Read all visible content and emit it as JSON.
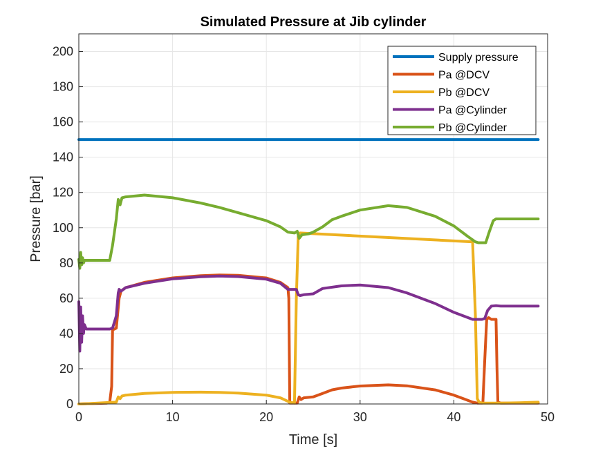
{
  "chart_data": {
    "type": "line",
    "title": "Simulated Pressure at Jib cylinder",
    "xlabel": "Time [s]",
    "ylabel": "Pressure [bar]",
    "xlim": [
      0,
      50
    ],
    "ylim": [
      0,
      210
    ],
    "xticks": [
      0,
      10,
      20,
      30,
      40,
      50
    ],
    "yticks": [
      0,
      20,
      40,
      60,
      80,
      100,
      120,
      140,
      160,
      180,
      200
    ],
    "grid": true,
    "legend_position": "top-right",
    "series": [
      {
        "name": "Supply pressure",
        "color": "#0072BD",
        "x": [
          0,
          49
        ],
        "y": [
          150,
          150
        ]
      },
      {
        "name": "Pa @DCV",
        "color": "#D95319",
        "x": [
          0,
          3.0,
          3.3,
          3.5,
          3.6,
          4.0,
          4.3,
          4.5,
          5,
          7,
          10,
          13,
          15,
          17,
          20,
          21.5,
          22.3,
          22.4,
          22.5,
          23.3,
          23.5,
          23.7,
          24,
          25,
          26,
          27,
          28,
          30,
          33,
          35,
          38,
          40,
          41,
          42,
          42.5,
          43.0,
          43.1,
          43.3,
          43.5,
          43.7,
          44.0,
          44.5,
          44.6,
          44.7,
          45,
          46,
          47,
          49
        ],
        "y": [
          0,
          0.5,
          1,
          10,
          42,
          43,
          60,
          64,
          66,
          69,
          71.5,
          72.8,
          73.2,
          73,
          71.5,
          69,
          66,
          60,
          0.5,
          0.5,
          4,
          2.5,
          3.5,
          4,
          6,
          8,
          9,
          10.2,
          10.8,
          10.3,
          8,
          5,
          3,
          1,
          0.5,
          0.5,
          1,
          25,
          48,
          49,
          48,
          48,
          20,
          1,
          0.5,
          0.5,
          0.5,
          0.5
        ]
      },
      {
        "name": "Pb @DCV",
        "color": "#EDB120",
        "x": [
          0,
          1,
          2,
          3,
          4.0,
          4.2,
          4.4,
          4.6,
          5,
          7,
          10,
          13,
          15,
          17,
          20,
          21.5,
          22.5,
          23.0,
          23.2,
          23.4,
          23.6,
          42.0,
          42.3,
          42.5,
          42.7,
          43.0,
          45,
          47,
          49
        ],
        "y": [
          0,
          0.2,
          0.5,
          0.8,
          1,
          4,
          3,
          4.5,
          5,
          6,
          6.6,
          6.7,
          6.6,
          6.2,
          5,
          3.5,
          1,
          0.5,
          60,
          95,
          97,
          92,
          50,
          3,
          1,
          0.5,
          0.5,
          0.7,
          1
        ]
      },
      {
        "name": "Pa @Cylinder",
        "color": "#7E2F8E",
        "x": [
          0,
          0.1,
          0.2,
          0.3,
          0.4,
          0.5,
          0.6,
          0.8,
          1,
          3.3,
          3.6,
          4.0,
          4.2,
          4.3,
          4.5,
          5,
          7,
          10,
          13,
          15,
          17,
          20,
          21.5,
          22.3,
          23.2,
          23.4,
          23.6,
          24,
          25,
          26,
          28,
          30,
          33,
          35,
          38,
          40,
          41,
          42,
          43.0,
          43.3,
          43.6,
          44.0,
          44.5,
          45,
          47,
          49
        ],
        "y": [
          58,
          30,
          55,
          35,
          50,
          40,
          45,
          42.5,
          42.5,
          42.5,
          43,
          50,
          63,
          65,
          64,
          66,
          68.5,
          71,
          72.2,
          72.6,
          72.3,
          70.8,
          68.5,
          65,
          65,
          62,
          61.5,
          62,
          62.5,
          65.5,
          67,
          67.5,
          66,
          63,
          57,
          52,
          50,
          48,
          48,
          48.5,
          53,
          55.5,
          55.8,
          55.5,
          55.5,
          55.5
        ]
      },
      {
        "name": "Pb @Cylinder",
        "color": "#77AC30",
        "x": [
          0,
          0.1,
          0.2,
          0.3,
          0.4,
          0.5,
          0.6,
          1,
          2,
          3.3,
          3.6,
          4.0,
          4.2,
          4.4,
          4.6,
          5,
          7,
          10,
          13,
          15,
          17,
          20,
          21.5,
          22.3,
          23.0,
          23.3,
          23.5,
          23.8,
          24.5,
          25,
          26,
          27,
          28,
          30,
          33,
          35,
          38,
          40,
          41.5,
          42.3,
          42.6,
          43,
          43.4,
          43.8,
          44.2,
          44.5,
          45,
          47,
          49
        ],
        "y": [
          82,
          77,
          86,
          79,
          83,
          80,
          81.5,
          81.5,
          81.5,
          81.5,
          90,
          105,
          116,
          113,
          117,
          117.5,
          118.5,
          117,
          114,
          111.5,
          108.5,
          104,
          100.5,
          97.5,
          97,
          98,
          94,
          96,
          96.5,
          97.5,
          100.5,
          104.5,
          106.5,
          110,
          112.5,
          111.5,
          106.5,
          101,
          95,
          92,
          91.5,
          91.5,
          91.5,
          98,
          104,
          105,
          105,
          105,
          105
        ]
      }
    ]
  }
}
